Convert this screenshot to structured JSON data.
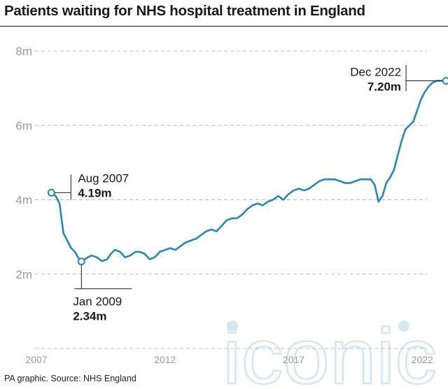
{
  "title": "Patients waiting for NHS hospital treatment in England",
  "footer": "PA graphic. Source: NHS England",
  "watermark": "iconic",
  "colors": {
    "line": "#2a86b4",
    "grid": "#bdbdbd",
    "axis_text": "#9a9a9a",
    "text": "#1a1a1a",
    "watermark": "#cfe3ef"
  },
  "chart_data": {
    "type": "line",
    "title": "Patients waiting for NHS hospital treatment in England",
    "xlabel": "",
    "ylabel": "",
    "ylim": [
      0,
      8
    ],
    "xlim": [
      2007,
      2023
    ],
    "grid": "horizontal dashed",
    "y_ticks": [
      {
        "value": 2,
        "label": "2m"
      },
      {
        "value": 4,
        "label": "4m"
      },
      {
        "value": 6,
        "label": "6m"
      },
      {
        "value": 8,
        "label": "8m"
      }
    ],
    "x_ticks": [
      {
        "value": 2007,
        "label": "2007"
      },
      {
        "value": 2012,
        "label": "2012"
      },
      {
        "value": 2017,
        "label": "2017"
      },
      {
        "value": 2022,
        "label": "2022"
      }
    ],
    "series": [
      {
        "x": [
          2007.58,
          2007.75,
          2007.9,
          2008.05,
          2008.2,
          2008.35,
          2008.5,
          2008.62,
          2008.75,
          2008.88,
          2009.0,
          2009.15,
          2009.35,
          2009.55,
          2009.75,
          2009.9,
          2010.05,
          2010.25,
          2010.45,
          2010.65,
          2010.85,
          2011.0,
          2011.2,
          2011.4,
          2011.6,
          2011.8,
          2012.0,
          2012.2,
          2012.4,
          2012.6,
          2012.8,
          2013.0,
          2013.2,
          2013.4,
          2013.6,
          2013.8,
          2014.0,
          2014.2,
          2014.4,
          2014.6,
          2014.8,
          2015.0,
          2015.2,
          2015.4,
          2015.6,
          2015.8,
          2016.0,
          2016.2,
          2016.4,
          2016.6,
          2016.8,
          2017.0,
          2017.2,
          2017.4,
          2017.6,
          2017.8,
          2018.0,
          2018.2,
          2018.4,
          2018.6,
          2018.8,
          2019.0,
          2019.2,
          2019.4,
          2019.6,
          2019.8,
          2020.0,
          2020.15,
          2020.3,
          2020.45,
          2020.6,
          2020.75,
          2020.9,
          2021.05,
          2021.2,
          2021.35,
          2021.5,
          2021.65,
          2021.8,
          2021.95,
          2022.1,
          2022.25,
          2022.4,
          2022.55,
          2022.7,
          2022.92
        ],
        "values": [
          4.19,
          4.1,
          3.9,
          3.1,
          2.9,
          2.7,
          2.6,
          2.45,
          2.34,
          2.4,
          2.45,
          2.5,
          2.45,
          2.35,
          2.4,
          2.55,
          2.65,
          2.6,
          2.45,
          2.5,
          2.6,
          2.6,
          2.55,
          2.4,
          2.45,
          2.6,
          2.65,
          2.7,
          2.65,
          2.75,
          2.85,
          2.9,
          2.95,
          3.05,
          3.15,
          3.2,
          3.15,
          3.3,
          3.45,
          3.5,
          3.5,
          3.6,
          3.75,
          3.85,
          3.9,
          3.85,
          3.95,
          4.0,
          4.1,
          4.0,
          4.15,
          4.25,
          4.3,
          4.25,
          4.3,
          4.4,
          4.5,
          4.55,
          4.55,
          4.55,
          4.5,
          4.45,
          4.45,
          4.5,
          4.55,
          4.55,
          4.55,
          4.4,
          3.95,
          4.1,
          4.45,
          4.6,
          4.8,
          5.2,
          5.6,
          5.9,
          6.0,
          6.1,
          6.4,
          6.7,
          6.9,
          7.05,
          7.15,
          7.2,
          7.2,
          7.2
        ]
      }
    ],
    "annotations": [
      {
        "label": "Aug 2007",
        "value": "4.19m"
      },
      {
        "label": "Jan 2009",
        "value": "2.34m"
      },
      {
        "label": "Dec 2022",
        "value": "7.20m"
      }
    ]
  }
}
